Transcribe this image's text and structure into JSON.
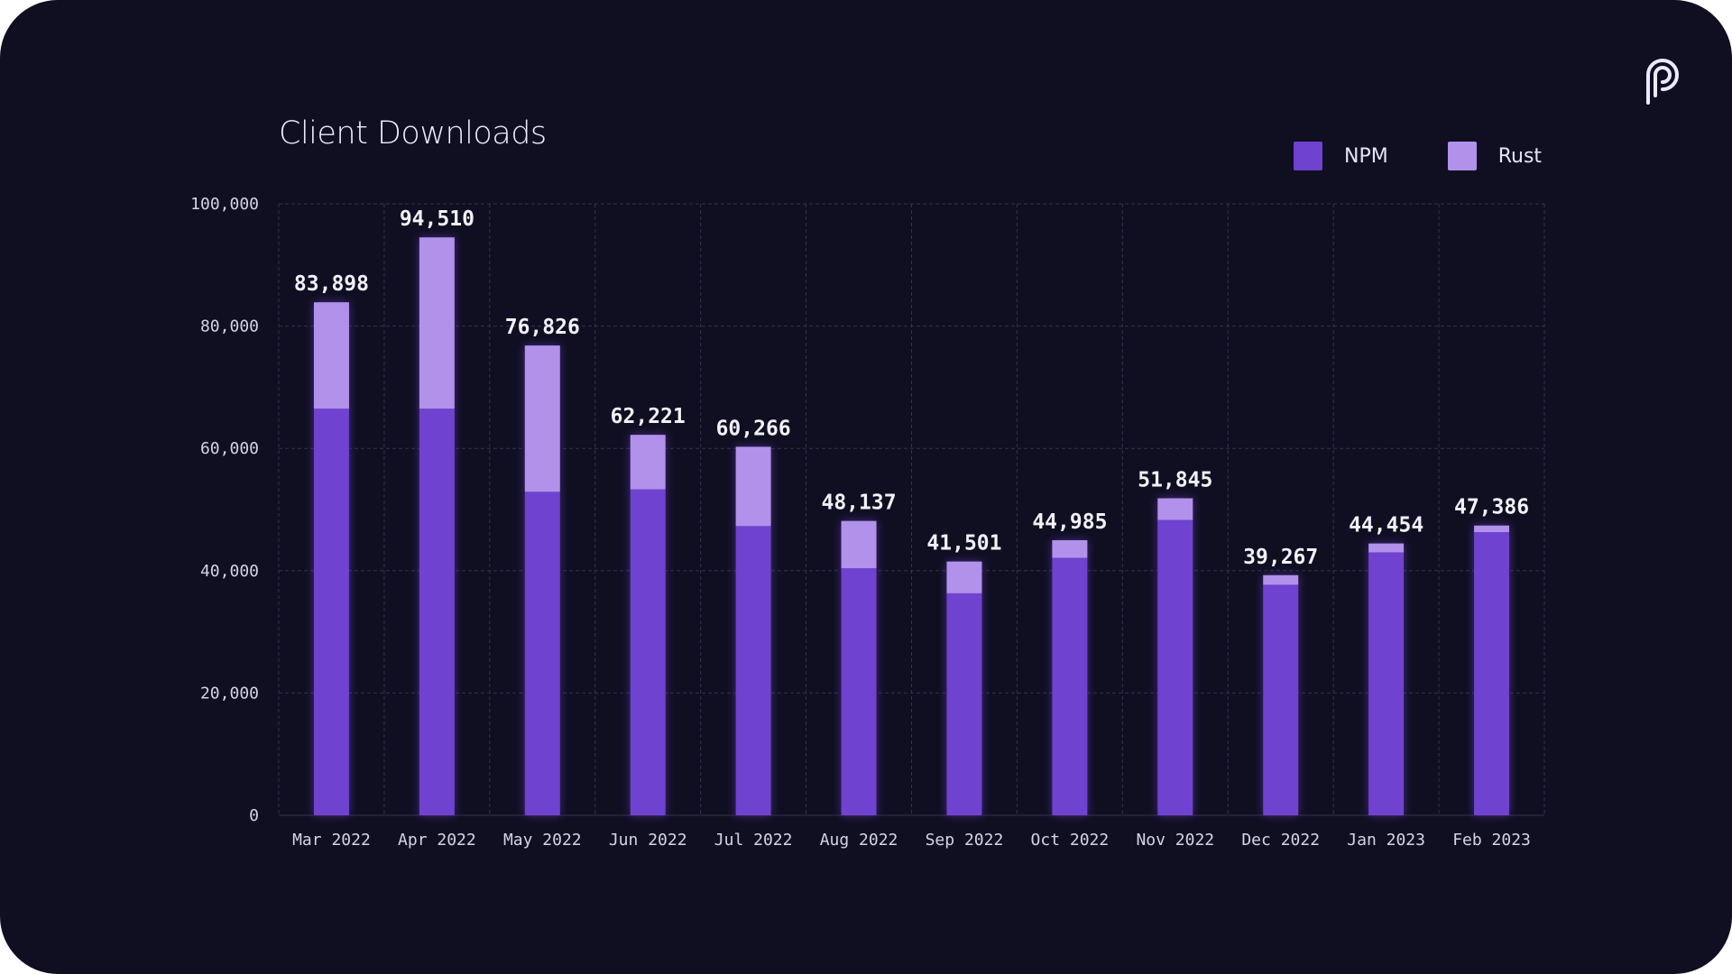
{
  "colors": {
    "background": "#100f22",
    "npm": "#6f42d0",
    "rust": "#b191ea",
    "grid": "#34324c"
  },
  "logo": {
    "icon": "pyth-logo-icon"
  },
  "chart_data": {
    "type": "bar",
    "stacked": true,
    "title": "Client Downloads",
    "xlabel": "",
    "ylabel": "",
    "ylim": [
      0,
      100000
    ],
    "yticks": [
      0,
      20000,
      40000,
      60000,
      80000,
      100000
    ],
    "ytick_labels": [
      "0",
      "20,000",
      "40,000",
      "60,000",
      "80,000",
      "100,000"
    ],
    "grid": true,
    "legend_position": "top-right",
    "categories": [
      "Mar 2022",
      "Apr 2022",
      "May 2022",
      "Jun 2022",
      "Jul 2022",
      "Aug 2022",
      "Sep 2022",
      "Oct 2022",
      "Nov 2022",
      "Dec 2022",
      "Jan 2023",
      "Feb 2023"
    ],
    "series": [
      {
        "name": "NPM",
        "values": [
          66500,
          66500,
          52900,
          53300,
          47300,
          40400,
          36300,
          42100,
          48300,
          37700,
          43000,
          46300
        ]
      },
      {
        "name": "Rust",
        "values": [
          17398,
          28010,
          23926,
          8921,
          12966,
          7737,
          5201,
          2885,
          3545,
          1567,
          1454,
          1086
        ]
      }
    ],
    "totals": [
      83898,
      94510,
      76826,
      62221,
      60266,
      48137,
      41501,
      44985,
      51845,
      39267,
      44454,
      47386
    ],
    "total_labels": [
      "83,898",
      "94,510",
      "76,826",
      "62,221",
      "60,266",
      "48,137",
      "41,501",
      "44,985",
      "51,845",
      "39,267",
      "44,454",
      "47,386"
    ]
  }
}
